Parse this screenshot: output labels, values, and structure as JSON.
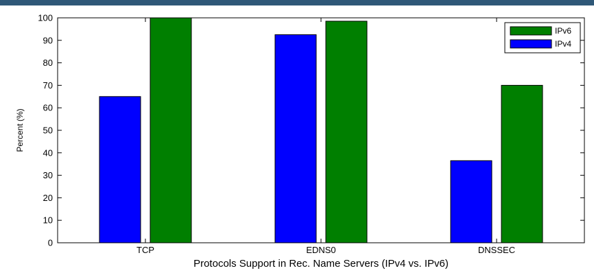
{
  "chart_data": {
    "type": "bar",
    "title": "",
    "xlabel": "Protocols Support in Rec. Name Servers (IPv4 vs. IPv6)",
    "ylabel": "Percent (%)",
    "categories": [
      "TCP",
      "EDNS0",
      "DNSSEC"
    ],
    "ylim": [
      0,
      100
    ],
    "yticks": [
      0,
      10,
      20,
      30,
      40,
      50,
      60,
      70,
      80,
      90,
      100
    ],
    "grid": false,
    "legend_position": "top-right",
    "series": [
      {
        "name": "IPv4",
        "color": "#0000ff",
        "values": [
          65,
          92.5,
          36.5
        ]
      },
      {
        "name": "IPv6",
        "color": "#007f00",
        "values": [
          100,
          98.5,
          70
        ]
      }
    ],
    "legend_order": [
      "IPv6",
      "IPv4"
    ]
  }
}
